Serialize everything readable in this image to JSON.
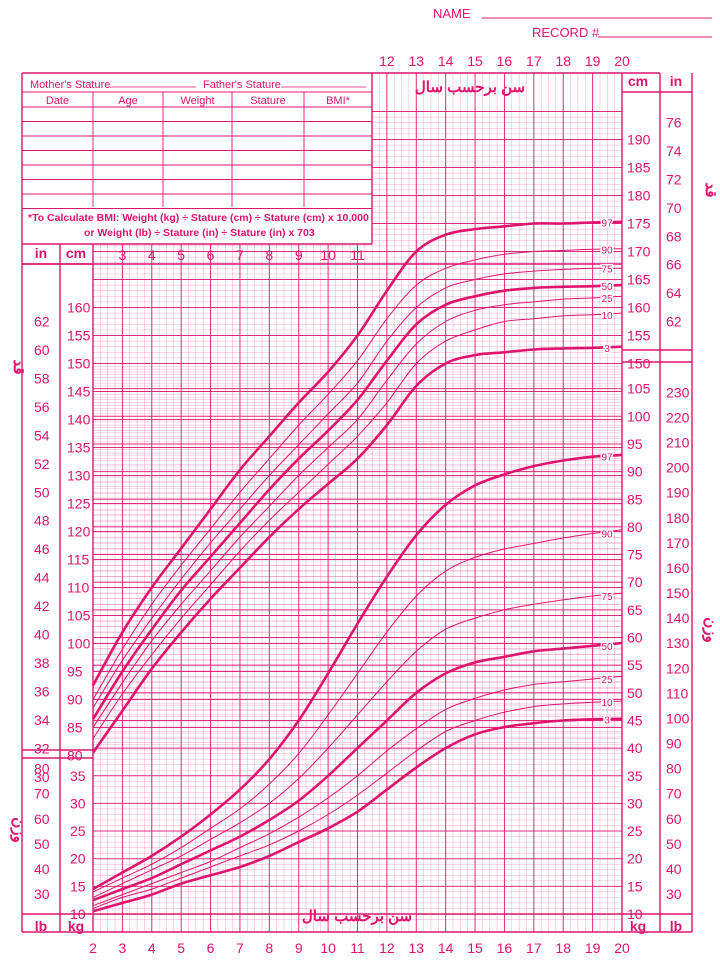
{
  "header": {
    "name_label": "NAME",
    "record_label": "RECORD #"
  },
  "table": {
    "mother_label": "Mother's Stature",
    "father_label": "Father's Stature",
    "columns": [
      "Date",
      "Age",
      "Weight",
      "Stature",
      "BMI*"
    ],
    "bmi_note_1": "*To Calculate BMI: Weight (kg) ÷ Stature (cm) ÷ Stature (cm) x 10,000",
    "bmi_note_2": "or Weight (lb) ÷ Stature (in) ÷ Stature (in) x 703"
  },
  "labels": {
    "age_years": "سن برحسب سال",
    "stature_fa": "قد",
    "weight_fa": "وزن",
    "cm": "cm",
    "in": "in",
    "kg": "kg",
    "lb": "lb"
  },
  "colors": {
    "accent": "#e0146e"
  },
  "chart_data": [
    {
      "type": "line",
      "xlabel": "سن برحسب سال",
      "ylabel": "قد",
      "x": [
        2,
        3,
        4,
        5,
        6,
        7,
        8,
        9,
        10,
        11,
        12,
        13,
        14,
        15,
        16,
        17,
        18,
        19,
        20
      ],
      "xlim": [
        2,
        20
      ],
      "ylim_cm": [
        77,
        195
      ],
      "series": [
        {
          "name": "97",
          "values": [
            92.5,
            102,
            110,
            117,
            124,
            131,
            137,
            143,
            148.5,
            155,
            163,
            170,
            173,
            174,
            174.5,
            175,
            175,
            175.2,
            175.3
          ]
        },
        {
          "name": "90",
          "values": [
            90,
            99,
            107,
            114,
            120.5,
            127,
            133,
            139,
            144.5,
            150.5,
            158,
            164,
            167,
            168.5,
            169.5,
            170,
            170.2,
            170.4,
            170.5
          ]
        },
        {
          "name": "75",
          "values": [
            88.5,
            97,
            104.5,
            111.5,
            118,
            124,
            130,
            135.5,
            141,
            146.5,
            154,
            160,
            163.5,
            165,
            166,
            166.5,
            166.8,
            167,
            167
          ]
        },
        {
          "name": "50",
          "values": [
            86.5,
            95,
            102.5,
            109.5,
            115.5,
            121.5,
            127.5,
            133,
            138,
            143.5,
            150.5,
            157,
            160.5,
            162,
            163,
            163.5,
            163.7,
            163.8,
            164
          ]
        },
        {
          "name": "25",
          "values": [
            85,
            93,
            100.5,
            107,
            113,
            119,
            124.5,
            130,
            135,
            140,
            147,
            153.5,
            157.5,
            159.5,
            160.5,
            161,
            161.5,
            161.7,
            162
          ]
        },
        {
          "name": "10",
          "values": [
            83,
            91,
            98,
            104.5,
            110.5,
            116.5,
            122,
            127,
            132,
            137,
            143,
            150,
            154,
            156,
            157.5,
            158,
            158.5,
            158.7,
            159
          ]
        },
        {
          "name": "3",
          "values": [
            80.5,
            88,
            95.5,
            102,
            108,
            113.5,
            119,
            124,
            128.5,
            133,
            139,
            146,
            150,
            151.5,
            152,
            152.5,
            152.7,
            152.8,
            153
          ]
        }
      ]
    },
    {
      "type": "line",
      "xlabel": "سن برحسب سال",
      "ylabel": "وزن",
      "x": [
        2,
        3,
        4,
        5,
        6,
        7,
        8,
        9,
        10,
        11,
        12,
        13,
        14,
        15,
        16,
        17,
        18,
        19,
        20
      ],
      "xlim": [
        2,
        20
      ],
      "ylim_kg": [
        8,
        109
      ],
      "series": [
        {
          "name": "97",
          "values": [
            14.5,
            17.5,
            20.5,
            24,
            28,
            32.5,
            38,
            45,
            53.5,
            62.5,
            71,
            78.5,
            84,
            87.5,
            89.5,
            91,
            92,
            92.7,
            93
          ]
        },
        {
          "name": "90",
          "values": [
            14,
            16.5,
            19,
            22,
            25.5,
            29,
            33.5,
            39,
            46,
            53.5,
            61,
            67.5,
            72,
            74.5,
            76,
            77,
            78,
            78.8,
            79.5
          ]
        },
        {
          "name": "75",
          "values": [
            13,
            15.5,
            18,
            20.5,
            23.5,
            26.5,
            30,
            34.5,
            40,
            46,
            52,
            57.5,
            61.5,
            63.5,
            65,
            66,
            66.8,
            67.5,
            68
          ]
        },
        {
          "name": "50",
          "values": [
            12.5,
            14.5,
            16.5,
            19,
            21.5,
            24,
            27,
            30.5,
            35,
            40,
            45,
            50,
            53.5,
            55.5,
            56.5,
            57.5,
            58,
            58.5,
            59
          ]
        },
        {
          "name": "25",
          "values": [
            11.5,
            13.5,
            15.5,
            17.5,
            19.5,
            22,
            24.5,
            27.5,
            31,
            35,
            39.5,
            43.5,
            47,
            49,
            50.5,
            51.5,
            52,
            52.5,
            53
          ]
        },
        {
          "name": "10",
          "values": [
            11,
            13,
            14.5,
            16.5,
            18.5,
            20.5,
            22.5,
            25,
            28,
            31.5,
            35.5,
            39.5,
            43,
            45,
            46.5,
            47.5,
            48,
            48.3,
            48.5
          ]
        },
        {
          "name": "3",
          "values": [
            10.5,
            12,
            13.5,
            15.5,
            17,
            18.5,
            20.5,
            23,
            25.5,
            28.5,
            32.5,
            36.5,
            40,
            42.5,
            43.8,
            44.5,
            45,
            45.2,
            45.3
          ]
        }
      ]
    }
  ]
}
